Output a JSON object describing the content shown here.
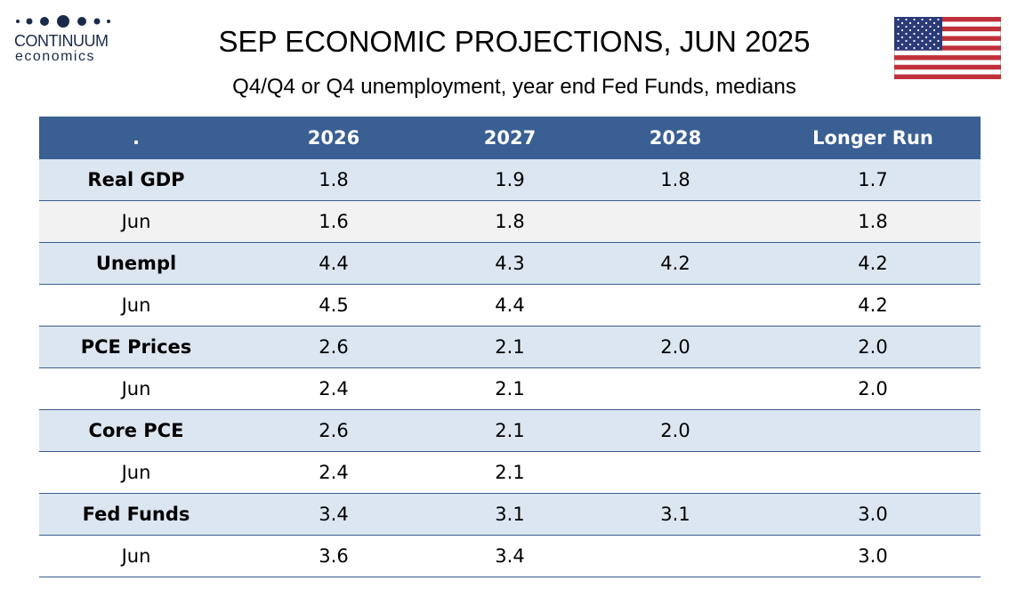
{
  "logo": {
    "name": "CONTINUUM",
    "tagline": "economics"
  },
  "header": {
    "title": "SEP ECONOMIC PROJECTIONS, JUN 2025",
    "subtitle": "Q4/Q4 or Q4 unemployment, year end Fed Funds, medians"
  },
  "table": {
    "columns": [
      ".",
      "2026",
      "2027",
      "2028",
      "Longer Run"
    ],
    "groups": [
      {
        "label": "Real GDP",
        "values": [
          "1.8",
          "1.9",
          "1.8",
          "1.7"
        ],
        "prior": {
          "label": "Jun",
          "values": [
            "1.6",
            "1.8",
            null,
            "1.8"
          ]
        }
      },
      {
        "label": "Unempl",
        "values": [
          "4.4",
          "4.3",
          "4.2",
          "4.2"
        ],
        "prior": {
          "label": "Jun",
          "values": [
            "4.5",
            "4.4",
            null,
            "4.2"
          ]
        }
      },
      {
        "label": "PCE Prices",
        "values": [
          "2.6",
          "2.1",
          "2.0",
          "2.0"
        ],
        "prior": {
          "label": "Jun",
          "values": [
            "2.4",
            "2.1",
            null,
            "2.0"
          ]
        }
      },
      {
        "label": "Core PCE",
        "values": [
          "2.6",
          "2.1",
          "2.0",
          null
        ],
        "prior": {
          "label": "Jun",
          "values": [
            "2.4",
            "2.1",
            null,
            null
          ]
        }
      },
      {
        "label": "Fed Funds",
        "values": [
          "3.4",
          "3.1",
          "3.1",
          "3.0"
        ],
        "prior": {
          "label": "Jun",
          "values": [
            "3.6",
            "3.4",
            null,
            "3.0"
          ]
        }
      }
    ]
  }
}
